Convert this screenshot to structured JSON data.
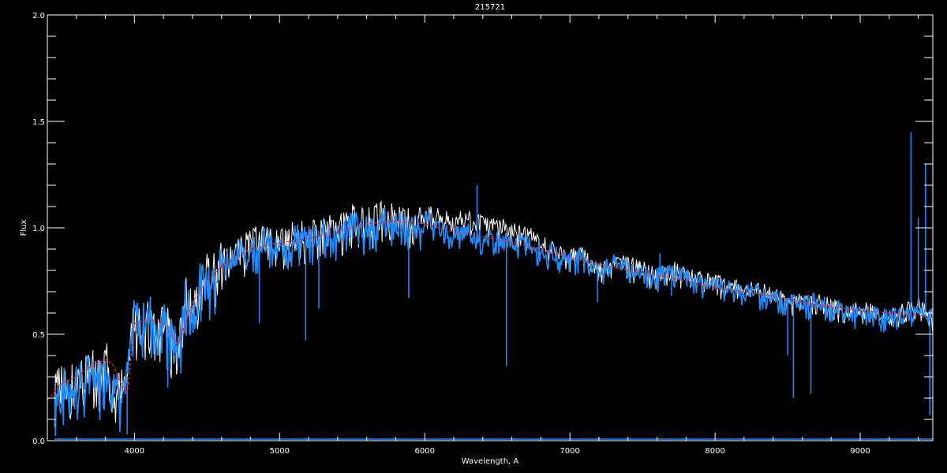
{
  "chart_data": {
    "type": "line",
    "title": "215721",
    "xlabel": "Wavelength, A",
    "ylabel": "Flux",
    "xlim": [
      3400,
      9500
    ],
    "ylim": [
      0.0,
      2.0
    ],
    "x_ticks": [
      4000,
      5000,
      6000,
      7000,
      8000,
      9000
    ],
    "y_ticks": [
      "0.0",
      "0.5",
      "1.0",
      "1.5",
      "2.0"
    ],
    "grid": false,
    "legend": "none",
    "colors": {
      "observed": "#1e8cff",
      "reference": "#ffffff",
      "model": "#ff2020",
      "background": "#000000",
      "axes": "#ffffff"
    },
    "series": [
      {
        "key": "reference",
        "x": [
          3450,
          3500,
          3550,
          3600,
          3650,
          3700,
          3750,
          3800,
          3850,
          3900,
          3950,
          4000,
          4050,
          4100,
          4150,
          4200,
          4250,
          4300,
          4350,
          4400,
          4450,
          4500,
          4550,
          4600,
          4700,
          4800,
          4900,
          5000,
          5100,
          5200,
          5300,
          5400,
          5500,
          5600,
          5700,
          5800,
          5900,
          6000,
          6100,
          6200,
          6300,
          6400,
          6500,
          6600,
          6700,
          6800,
          6900,
          7000,
          7100,
          7200,
          7300,
          7400,
          7500,
          7600,
          7700,
          7800,
          7900,
          8000,
          8100,
          8200,
          8300,
          8400,
          8500,
          8600,
          8700,
          8800,
          8900,
          9000,
          9100,
          9200,
          9300,
          9400,
          9500
        ],
        "y": [
          0.23,
          0.28,
          0.26,
          0.31,
          0.29,
          0.37,
          0.31,
          0.38,
          0.34,
          0.26,
          0.31,
          0.61,
          0.56,
          0.63,
          0.56,
          0.59,
          0.51,
          0.43,
          0.69,
          0.63,
          0.76,
          0.79,
          0.81,
          0.85,
          0.89,
          0.94,
          0.97,
          0.93,
          0.99,
          0.97,
          1.02,
          1.0,
          1.05,
          1.03,
          1.07,
          1.05,
          1.03,
          1.08,
          1.06,
          1.04,
          1.05,
          1.02,
          1.02,
          0.99,
          0.98,
          0.94,
          0.9,
          0.88,
          0.88,
          0.81,
          0.85,
          0.83,
          0.81,
          0.78,
          0.81,
          0.79,
          0.76,
          0.75,
          0.73,
          0.72,
          0.71,
          0.69,
          0.68,
          0.66,
          0.67,
          0.64,
          0.63,
          0.62,
          0.61,
          0.6,
          0.61,
          0.64,
          0.6
        ]
      },
      {
        "key": "observed",
        "x": [
          3450,
          3500,
          3550,
          3600,
          3650,
          3700,
          3750,
          3800,
          3850,
          3900,
          3950,
          4000,
          4050,
          4100,
          4150,
          4200,
          4250,
          4300,
          4350,
          4400,
          4450,
          4500,
          4550,
          4600,
          4700,
          4800,
          4900,
          5000,
          5100,
          5200,
          5300,
          5400,
          5500,
          5600,
          5700,
          5800,
          5900,
          6000,
          6100,
          6200,
          6300,
          6400,
          6500,
          6600,
          6700,
          6800,
          6900,
          7000,
          7100,
          7200,
          7300,
          7400,
          7500,
          7600,
          7700,
          7800,
          7900,
          8000,
          8100,
          8200,
          8300,
          8400,
          8500,
          8600,
          8700,
          8800,
          8900,
          9000,
          9100,
          9200,
          9300,
          9400,
          9500
        ],
        "y": [
          0.22,
          0.27,
          0.25,
          0.3,
          0.28,
          0.36,
          0.3,
          0.37,
          0.33,
          0.25,
          0.3,
          0.6,
          0.55,
          0.62,
          0.55,
          0.58,
          0.5,
          0.42,
          0.68,
          0.62,
          0.75,
          0.78,
          0.8,
          0.84,
          0.88,
          0.92,
          0.95,
          0.9,
          0.97,
          0.95,
          1.0,
          0.97,
          1.03,
          1.0,
          1.05,
          1.03,
          1.0,
          1.05,
          1.0,
          0.97,
          0.99,
          0.95,
          0.96,
          0.93,
          0.94,
          0.9,
          0.88,
          0.86,
          0.87,
          0.8,
          0.84,
          0.82,
          0.8,
          0.78,
          0.8,
          0.78,
          0.75,
          0.74,
          0.72,
          0.71,
          0.7,
          0.68,
          0.67,
          0.65,
          0.66,
          0.63,
          0.62,
          0.6,
          0.6,
          0.59,
          0.6,
          0.62,
          0.6
        ]
      },
      {
        "key": "model",
        "x": [
          3400,
          3500,
          3600,
          3700,
          3800,
          3850,
          3900,
          3950,
          4000,
          4100,
          4200,
          4300,
          4400,
          4500,
          4600,
          4800,
          5000,
          5200,
          5400,
          5600,
          5800,
          6000,
          6200,
          6400,
          6600,
          6800,
          7000,
          7200,
          7400,
          7600,
          7800,
          8000,
          8200,
          8400,
          8600,
          8800,
          9000,
          9200,
          9400,
          9500
        ],
        "y": [
          0.19,
          0.27,
          0.3,
          0.35,
          0.38,
          0.36,
          0.28,
          0.22,
          0.55,
          0.57,
          0.55,
          0.45,
          0.65,
          0.75,
          0.82,
          0.9,
          0.93,
          0.95,
          0.98,
          1.02,
          1.03,
          1.02,
          0.98,
          0.96,
          0.93,
          0.9,
          0.86,
          0.83,
          0.8,
          0.78,
          0.75,
          0.72,
          0.7,
          0.68,
          0.65,
          0.63,
          0.61,
          0.6,
          0.59,
          0.58
        ]
      }
    ],
    "line_features": [
      {
        "x": 5180,
        "y": 0.47
      },
      {
        "x": 5270,
        "y": 0.62
      },
      {
        "x": 4860,
        "y": 0.55
      },
      {
        "x": 5890,
        "y": 0.67
      },
      {
        "x": 6563,
        "y": 0.35
      },
      {
        "x": 6360,
        "y": 1.2
      },
      {
        "x": 7190,
        "y": 0.65
      },
      {
        "x": 7620,
        "y": 0.88
      },
      {
        "x": 7700,
        "y": 0.68
      },
      {
        "x": 8500,
        "y": 0.4
      },
      {
        "x": 8540,
        "y": 0.2
      },
      {
        "x": 8660,
        "y": 0.22
      },
      {
        "x": 9350,
        "y": 1.45
      },
      {
        "x": 9400,
        "y": 1.05
      },
      {
        "x": 9450,
        "y": 1.3
      },
      {
        "x": 9480,
        "y": 0.12
      },
      {
        "x": 3950,
        "y": 0.03
      },
      {
        "x": 4230,
        "y": 0.25
      }
    ]
  }
}
